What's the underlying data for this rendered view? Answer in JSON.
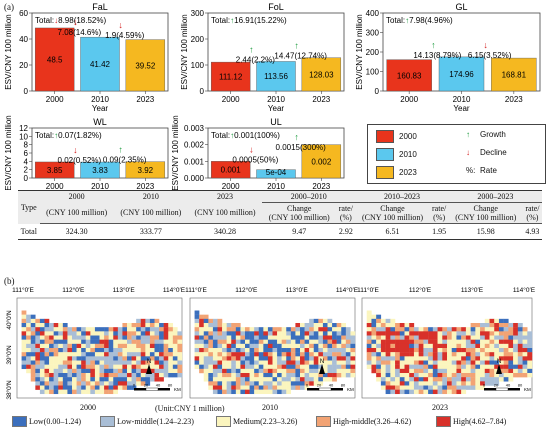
{
  "labels": {
    "a": "(a)",
    "b": "(b)"
  },
  "common": {
    "ylabel": "ESV/CNY 100 million",
    "xlabel": "Year"
  },
  "chart_data": [
    {
      "type": "bar",
      "title": "FaL",
      "categories": [
        "2000",
        "2010",
        "2023"
      ],
      "values": [
        48.5,
        41.42,
        39.52
      ],
      "value_labels": [
        "48.5",
        "41.42",
        "39.52"
      ],
      "ylim": [
        0,
        60
      ],
      "yticks": [
        0,
        20,
        40,
        60
      ],
      "ytick_labels": [
        "0",
        "20",
        "40",
        "60"
      ],
      "total_arrow": "down",
      "total": "8.98(18.52%)",
      "changes": [
        {
          "arrow": "down",
          "text": "7.08(14.6%)"
        },
        {
          "arrow": "down",
          "text": "1.9(4.59%)"
        }
      ]
    },
    {
      "type": "bar",
      "title": "FoL",
      "categories": [
        "2000",
        "2010",
        "2023"
      ],
      "values": [
        111.12,
        113.56,
        128.03
      ],
      "value_labels": [
        "111.12",
        "113.56",
        "128.03"
      ],
      "ylim": [
        0,
        300
      ],
      "yticks": [
        0,
        100,
        200,
        300
      ],
      "ytick_labels": [
        "0",
        "100",
        "200",
        "300"
      ],
      "total_arrow": "up",
      "total": "16.91(15.22%)",
      "changes": [
        {
          "arrow": "up",
          "text": "2.44(2.2%)"
        },
        {
          "arrow": "up",
          "text": "14.47(12.74%)"
        }
      ]
    },
    {
      "type": "bar",
      "title": "GL",
      "categories": [
        "2000",
        "2010",
        "2023"
      ],
      "values": [
        160.83,
        174.96,
        168.81
      ],
      "value_labels": [
        "160.83",
        "174.96",
        "168.81"
      ],
      "ylim": [
        0,
        400
      ],
      "yticks": [
        0,
        100,
        200,
        300,
        400
      ],
      "ytick_labels": [
        "0",
        "100",
        "200",
        "300",
        "400"
      ],
      "total_arrow": "up",
      "total": "7.98(4.96%)",
      "changes": [
        {
          "arrow": "up",
          "text": "14.13(8.79%)"
        },
        {
          "arrow": "down",
          "text": "6.15(3.52%)"
        }
      ]
    },
    {
      "type": "bar",
      "title": "WL",
      "categories": [
        "2000",
        "2010",
        "2023"
      ],
      "values": [
        3.85,
        3.83,
        3.92
      ],
      "value_labels": [
        "3.85",
        "3.83",
        "3.92"
      ],
      "ylim": [
        0,
        12
      ],
      "yticks": [
        0,
        2,
        4,
        6,
        8,
        10,
        12
      ],
      "ytick_labels": [
        "0",
        "2",
        "4",
        "6",
        "8",
        "10",
        "12"
      ],
      "total_arrow": "up",
      "total": "0.07(1.82%)",
      "changes": [
        {
          "arrow": "down",
          "text": "0.02(0.52%)"
        },
        {
          "arrow": "up",
          "text": "0.09(2.35%)"
        }
      ]
    },
    {
      "type": "bar",
      "title": "UL",
      "categories": [
        "2000",
        "2010",
        "2023"
      ],
      "values": [
        0.001,
        0.0005,
        0.002
      ],
      "value_labels": [
        "0.001",
        "5e-04",
        "0.002"
      ],
      "ylim": [
        0,
        0.003
      ],
      "yticks": [
        0,
        0.001,
        0.002,
        0.003
      ],
      "ytick_labels": [
        "0.000",
        "0.001",
        "0.002",
        "0.003"
      ],
      "total_arrow": "up",
      "total": "0.001(100%)",
      "changes": [
        {
          "arrow": "down",
          "text": "0.0005(50%)"
        },
        {
          "arrow": "up",
          "text": "0.0015(300%)"
        }
      ]
    }
  ],
  "legend": {
    "items": [
      {
        "label": "2000",
        "color": "#e8341c"
      },
      {
        "label": "2010",
        "color": "#5bc8ee"
      },
      {
        "label": "2023",
        "color": "#f5b820"
      }
    ],
    "growth": "Growth",
    "decline": "Decline",
    "rate_symbol": "%:",
    "rate": "Rate",
    "growth_color": "#1a9a3c",
    "decline_color": "#d42020"
  },
  "total_prefix": "Total:",
  "table": {
    "h_type": "Type",
    "h_years": [
      "2000",
      "2010",
      "2023"
    ],
    "h_unit": "(CNY 100 million)",
    "h_periods": [
      "2000–2010",
      "2010–2023",
      "2000–2023"
    ],
    "h_change": "Change",
    "h_change_unit": "(CNY 100 million)",
    "h_rate": "rate/",
    "h_rate_unit": "(%)",
    "row": {
      "type": "Total",
      "v2000": "324.30",
      "v2010": "333.77",
      "v2023": "340.28",
      "c1": "9.47",
      "r1": "2.92",
      "c2": "6.51",
      "r2": "1.95",
      "c3": "15.98",
      "r3": "4.93"
    }
  },
  "maps": {
    "years": [
      "2000",
      "2010",
      "2023"
    ],
    "lon_labels": [
      "111°0′E",
      "112°0′E",
      "113°0′E",
      "114°0′E"
    ],
    "lat_labels": [
      "40°0′N",
      "39°0′N",
      "38°0′N"
    ],
    "unit": "(Unit:CNY 1 million)",
    "north": "N",
    "scale_label": "KM",
    "scale_ticks": [
      "0",
      "20",
      "40",
      "80"
    ],
    "legend": [
      {
        "label": "Low(0.00–1.24)",
        "color": "#3b6fbd"
      },
      {
        "label": "Low-middle(1.24–2.23)",
        "color": "#a9bed6"
      },
      {
        "label": "Medium(2.23–3.26)",
        "color": "#fbf5be"
      },
      {
        "label": "High-middle(3.26–4.62)",
        "color": "#f2a374"
      },
      {
        "label": "High(4.62–7.84)",
        "color": "#d8312a"
      }
    ],
    "class_mix": [
      [
        0.22,
        0.2,
        0.3,
        0.17,
        0.11
      ],
      [
        0.2,
        0.22,
        0.3,
        0.17,
        0.11
      ],
      [
        0.1,
        0.18,
        0.36,
        0.18,
        0.18
      ]
    ]
  }
}
